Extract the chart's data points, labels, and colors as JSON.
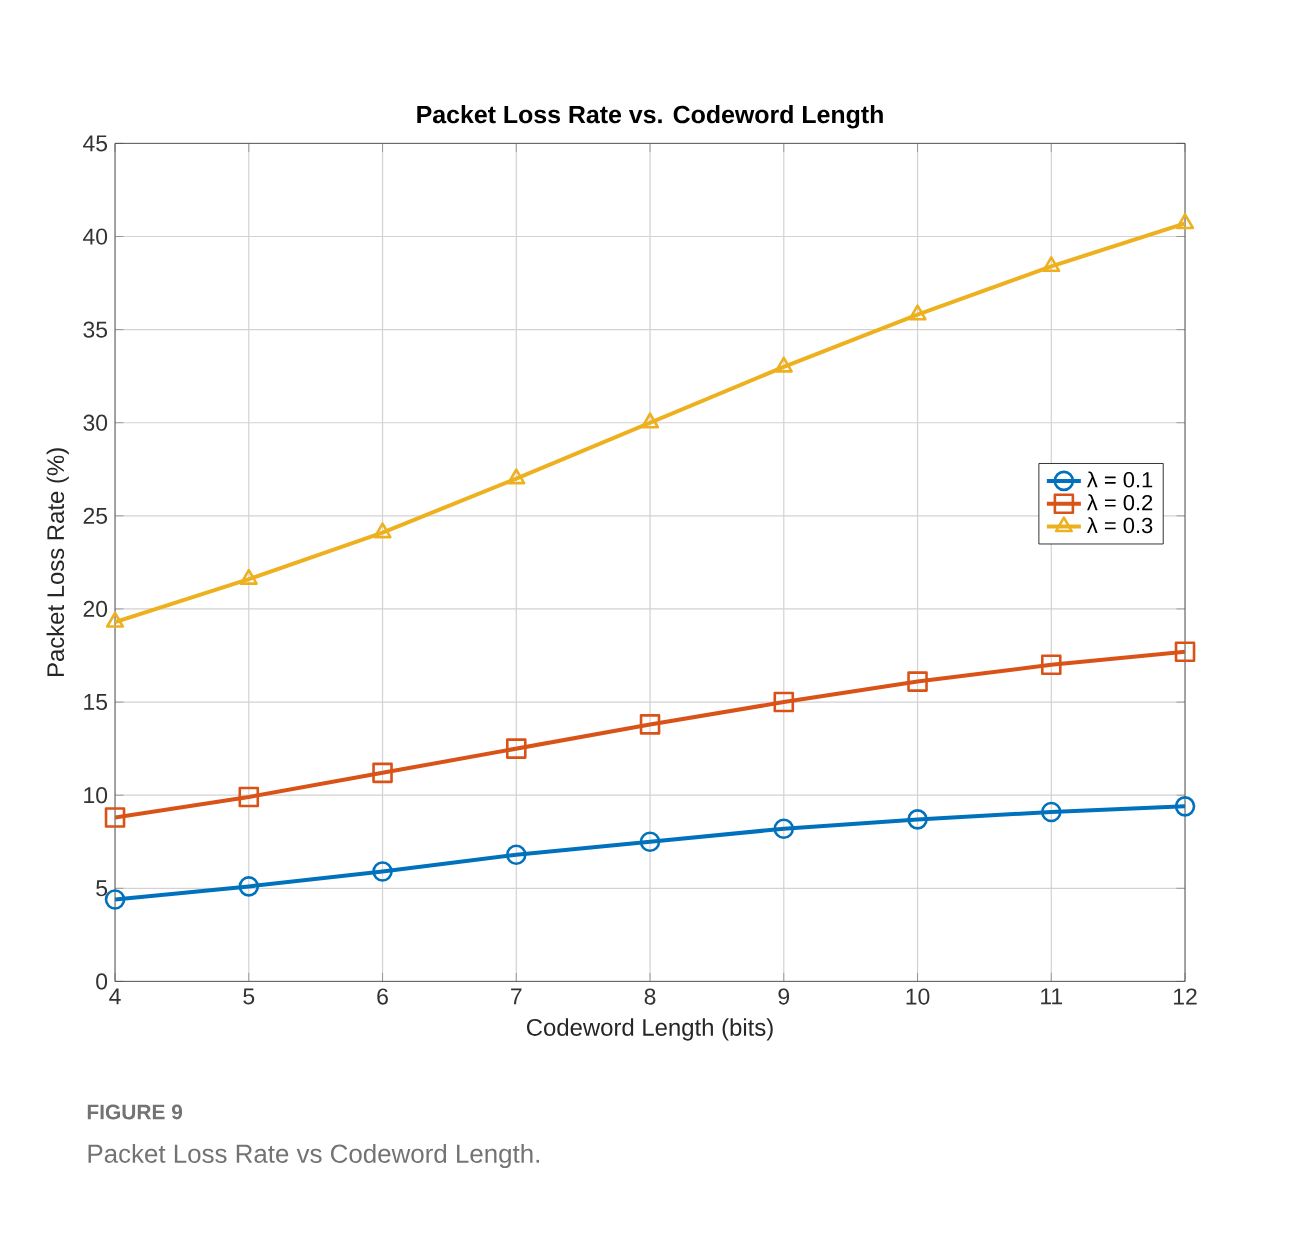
{
  "chart_data": {
    "type": "line",
    "title": "Packet Loss Rate vs. Codeword Length",
    "xlabel": "Codeword Length (bits)",
    "ylabel": "Packet Loss Rate (%)",
    "x": [
      4,
      5,
      6,
      7,
      8,
      9,
      10,
      11,
      12
    ],
    "series": [
      {
        "name": "λ = 0.1",
        "color": "#0072bd",
        "marker": "circle",
        "values": [
          4.4,
          5.1,
          5.9,
          6.8,
          7.5,
          8.2,
          8.7,
          9.1,
          9.4
        ]
      },
      {
        "name": "λ = 0.2",
        "color": "#d95319",
        "marker": "square",
        "values": [
          8.8,
          9.9,
          11.2,
          12.5,
          13.8,
          15.0,
          16.1,
          17.0,
          17.7
        ]
      },
      {
        "name": "λ = 0.3",
        "color": "#edb120",
        "marker": "triangle",
        "values": [
          19.3,
          21.6,
          24.1,
          27.0,
          30.0,
          33.0,
          35.8,
          38.4,
          40.7
        ]
      }
    ],
    "xlim": [
      4,
      12
    ],
    "ylim": [
      0,
      45
    ],
    "xticks": [
      4,
      5,
      6,
      7,
      8,
      9,
      10,
      11,
      12
    ],
    "yticks": [
      0,
      5,
      10,
      15,
      20,
      25,
      30,
      35,
      40,
      45
    ],
    "grid": true,
    "legend": "right",
    "line_style": "solid",
    "annotations": [
      "FIGURE 9",
      "Packet Loss Rate vs Codeword Length."
    ]
  }
}
